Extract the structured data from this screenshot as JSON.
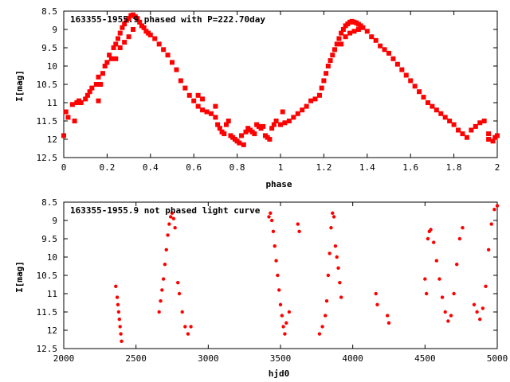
{
  "chart_data": [
    {
      "type": "scatter",
      "title": "163355-1955.9 phased with P=222.70day",
      "xlabel": "phase",
      "ylabel": "I[mag]",
      "xlim": [
        0,
        2
      ],
      "ylim": [
        8.5,
        12.5
      ],
      "y_inverted": true,
      "grid": false,
      "xticks": [
        0,
        0.2,
        0.4,
        0.6,
        0.8,
        1,
        1.2,
        1.4,
        1.6,
        1.8,
        2
      ],
      "xtick_labels": [
        "0",
        "0.2",
        "0.4",
        "0.6",
        "0.8",
        "1",
        "1.2",
        "1.4",
        "1.6",
        "1.8",
        "2"
      ],
      "yticks": [
        8.5,
        9,
        9.5,
        10,
        10.5,
        11,
        11.5,
        12,
        12.5
      ],
      "ytick_labels": [
        "8.5",
        "9",
        "9.5",
        "10",
        "10.5",
        "11",
        "11.5",
        "12",
        "12.5"
      ],
      "marker_color": "#ff0000",
      "series": [
        {
          "points": [
            [
              0.0,
              11.9
            ],
            [
              0.01,
              11.25
            ],
            [
              0.02,
              11.4
            ],
            [
              0.04,
              11.05
            ],
            [
              0.05,
              11.5
            ],
            [
              0.06,
              11.0
            ],
            [
              0.07,
              10.95
            ],
            [
              0.08,
              11.0
            ],
            [
              0.1,
              10.9
            ],
            [
              0.11,
              10.8
            ],
            [
              0.12,
              10.7
            ],
            [
              0.13,
              10.6
            ],
            [
              0.15,
              10.5
            ],
            [
              0.16,
              10.3
            ],
            [
              0.17,
              10.5
            ],
            [
              0.18,
              10.2
            ],
            [
              0.16,
              10.95
            ],
            [
              0.19,
              10.0
            ],
            [
              0.2,
              9.9
            ],
            [
              0.21,
              9.7
            ],
            [
              0.22,
              9.8
            ],
            [
              0.23,
              9.5
            ],
            [
              0.24,
              9.4
            ],
            [
              0.25,
              9.25
            ],
            [
              0.26,
              9.1
            ],
            [
              0.27,
              8.95
            ],
            [
              0.28,
              8.85
            ],
            [
              0.29,
              8.75
            ],
            [
              0.3,
              8.7
            ],
            [
              0.31,
              8.62
            ],
            [
              0.32,
              8.6
            ],
            [
              0.33,
              8.65
            ],
            [
              0.34,
              8.7
            ],
            [
              0.35,
              8.8
            ],
            [
              0.36,
              8.9
            ],
            [
              0.37,
              8.95
            ],
            [
              0.38,
              9.05
            ],
            [
              0.39,
              9.1
            ],
            [
              0.4,
              9.15
            ],
            [
              0.42,
              9.25
            ],
            [
              0.44,
              9.4
            ],
            [
              0.46,
              9.55
            ],
            [
              0.48,
              9.7
            ],
            [
              0.5,
              9.9
            ],
            [
              0.52,
              10.1
            ],
            [
              0.54,
              10.4
            ],
            [
              0.56,
              10.6
            ],
            [
              0.58,
              10.8
            ],
            [
              0.6,
              10.95
            ],
            [
              0.62,
              11.1
            ],
            [
              0.64,
              11.2
            ],
            [
              0.66,
              11.25
            ],
            [
              0.68,
              11.3
            ],
            [
              0.7,
              11.4
            ],
            [
              0.71,
              11.6
            ],
            [
              0.72,
              11.7
            ],
            [
              0.73,
              11.8
            ],
            [
              0.74,
              11.85
            ],
            [
              0.75,
              11.6
            ],
            [
              0.76,
              11.5
            ],
            [
              0.77,
              11.9
            ],
            [
              0.78,
              11.95
            ],
            [
              0.79,
              12.0
            ],
            [
              0.8,
              12.05
            ],
            [
              0.81,
              12.1
            ],
            [
              0.82,
              11.9
            ],
            [
              0.83,
              12.15
            ],
            [
              0.84,
              11.8
            ],
            [
              0.85,
              11.7
            ],
            [
              0.86,
              11.75
            ],
            [
              0.87,
              11.8
            ],
            [
              0.88,
              11.85
            ],
            [
              0.89,
              11.6
            ],
            [
              0.9,
              11.65
            ],
            [
              0.91,
              11.7
            ],
            [
              0.92,
              11.65
            ],
            [
              0.93,
              11.9
            ],
            [
              0.94,
              11.95
            ],
            [
              0.95,
              12.0
            ],
            [
              0.96,
              11.7
            ],
            [
              0.97,
              11.6
            ],
            [
              0.98,
              11.5
            ],
            [
              1.0,
              11.6
            ],
            [
              1.01,
              11.25
            ],
            [
              1.02,
              11.55
            ],
            [
              1.04,
              11.5
            ],
            [
              1.06,
              11.4
            ],
            [
              1.08,
              11.3
            ],
            [
              1.1,
              11.2
            ],
            [
              1.12,
              11.1
            ],
            [
              1.14,
              10.95
            ],
            [
              1.16,
              10.9
            ],
            [
              1.18,
              10.8
            ],
            [
              1.19,
              10.6
            ],
            [
              1.2,
              10.4
            ],
            [
              1.21,
              10.2
            ],
            [
              1.22,
              10.0
            ],
            [
              1.23,
              9.85
            ],
            [
              1.24,
              9.7
            ],
            [
              1.25,
              9.55
            ],
            [
              1.26,
              9.4
            ],
            [
              1.27,
              9.25
            ],
            [
              1.28,
              9.1
            ],
            [
              1.29,
              9.0
            ],
            [
              1.3,
              8.9
            ],
            [
              1.31,
              8.85
            ],
            [
              1.32,
              8.8
            ],
            [
              1.33,
              8.78
            ],
            [
              1.34,
              8.8
            ],
            [
              1.35,
              8.82
            ],
            [
              1.36,
              8.86
            ],
            [
              1.37,
              8.9
            ],
            [
              1.38,
              8.95
            ],
            [
              1.4,
              9.05
            ],
            [
              1.42,
              9.2
            ],
            [
              1.44,
              9.3
            ],
            [
              1.46,
              9.45
            ],
            [
              1.48,
              9.55
            ],
            [
              1.5,
              9.65
            ],
            [
              1.52,
              9.8
            ],
            [
              1.54,
              9.95
            ],
            [
              1.56,
              10.1
            ],
            [
              1.58,
              10.25
            ],
            [
              1.6,
              10.4
            ],
            [
              1.62,
              10.55
            ],
            [
              1.64,
              10.7
            ],
            [
              1.66,
              10.85
            ],
            [
              1.68,
              11.0
            ],
            [
              1.7,
              11.1
            ],
            [
              1.72,
              11.2
            ],
            [
              1.74,
              11.3
            ],
            [
              1.76,
              11.4
            ],
            [
              1.78,
              11.5
            ],
            [
              1.8,
              11.6
            ],
            [
              1.82,
              11.75
            ],
            [
              1.84,
              11.85
            ],
            [
              1.86,
              11.95
            ],
            [
              1.88,
              11.75
            ],
            [
              1.9,
              11.65
            ],
            [
              1.92,
              11.55
            ],
            [
              1.94,
              11.5
            ],
            [
              1.96,
              11.85
            ],
            [
              1.98,
              12.05
            ],
            [
              2.0,
              11.9
            ],
            [
              1.28,
              9.4
            ],
            [
              1.3,
              9.2
            ],
            [
              1.32,
              9.1
            ],
            [
              1.34,
              9.05
            ],
            [
              1.36,
              9.0
            ],
            [
              0.24,
              9.8
            ],
            [
              0.26,
              9.5
            ],
            [
              0.28,
              9.35
            ],
            [
              0.3,
              9.2
            ],
            [
              0.32,
              9.0
            ],
            [
              0.62,
              10.8
            ],
            [
              0.64,
              10.9
            ],
            [
              0.7,
              11.1
            ],
            [
              1.96,
              12.0
            ],
            [
              1.99,
              11.95
            ]
          ]
        }
      ]
    },
    {
      "type": "scatter",
      "title": "163355-1955.9 not phased light curve",
      "xlabel": "hjd0",
      "ylabel": "I[mag]",
      "xlim": [
        2000,
        5000
      ],
      "ylim": [
        8.5,
        12.5
      ],
      "y_inverted": true,
      "grid": false,
      "xticks": [
        2000,
        2500,
        3000,
        3500,
        4000,
        4500,
        5000
      ],
      "xtick_labels": [
        "2000",
        "2500",
        "3000",
        "3500",
        "4000",
        "4500",
        "5000"
      ],
      "yticks": [
        8.5,
        9,
        9.5,
        10,
        10.5,
        11,
        11.5,
        12,
        12.5
      ],
      "ytick_labels": [
        "8.5",
        "9",
        "9.5",
        "10",
        "10.5",
        "11",
        "11.5",
        "12",
        "12.5"
      ],
      "marker_color": "#ff0000",
      "series": [
        {
          "points": [
            [
              2360,
              10.8
            ],
            [
              2370,
              11.1
            ],
            [
              2375,
              11.3
            ],
            [
              2380,
              11.5
            ],
            [
              2385,
              11.7
            ],
            [
              2390,
              11.9
            ],
            [
              2395,
              12.1
            ],
            [
              2400,
              12.3
            ],
            [
              2660,
              11.5
            ],
            [
              2670,
              11.2
            ],
            [
              2680,
              10.9
            ],
            [
              2690,
              10.6
            ],
            [
              2700,
              10.2
            ],
            [
              2710,
              9.8
            ],
            [
              2720,
              9.4
            ],
            [
              2730,
              9.1
            ],
            [
              2740,
              8.9
            ],
            [
              2750,
              8.8
            ],
            [
              2760,
              8.95
            ],
            [
              2770,
              9.2
            ],
            [
              2790,
              10.7
            ],
            [
              2800,
              11.0
            ],
            [
              2820,
              11.5
            ],
            [
              2840,
              11.9
            ],
            [
              2860,
              12.1
            ],
            [
              2880,
              11.9
            ],
            [
              3420,
              8.9
            ],
            [
              3430,
              8.8
            ],
            [
              3440,
              9.0
            ],
            [
              3450,
              9.3
            ],
            [
              3460,
              9.7
            ],
            [
              3470,
              10.1
            ],
            [
              3480,
              10.5
            ],
            [
              3490,
              10.9
            ],
            [
              3500,
              11.3
            ],
            [
              3510,
              11.6
            ],
            [
              3520,
              11.9
            ],
            [
              3530,
              12.1
            ],
            [
              3540,
              11.8
            ],
            [
              3560,
              11.5
            ],
            [
              3620,
              9.1
            ],
            [
              3630,
              9.3
            ],
            [
              3770,
              12.1
            ],
            [
              3790,
              11.9
            ],
            [
              3810,
              11.6
            ],
            [
              3820,
              11.2
            ],
            [
              3830,
              10.5
            ],
            [
              3840,
              9.9
            ],
            [
              3850,
              9.2
            ],
            [
              3860,
              8.8
            ],
            [
              3870,
              8.9
            ],
            [
              3880,
              9.7
            ],
            [
              3890,
              10.0
            ],
            [
              3900,
              10.3
            ],
            [
              3910,
              10.7
            ],
            [
              3920,
              11.1
            ],
            [
              4160,
              11.0
            ],
            [
              4170,
              11.3
            ],
            [
              4240,
              11.6
            ],
            [
              4250,
              11.8
            ],
            [
              4500,
              10.6
            ],
            [
              4510,
              11.0
            ],
            [
              4520,
              9.5
            ],
            [
              4530,
              9.3
            ],
            [
              4540,
              9.25
            ],
            [
              4560,
              9.6
            ],
            [
              4580,
              10.1
            ],
            [
              4600,
              10.6
            ],
            [
              4620,
              11.1
            ],
            [
              4640,
              11.5
            ],
            [
              4660,
              11.75
            ],
            [
              4680,
              11.6
            ],
            [
              4700,
              11.0
            ],
            [
              4720,
              10.2
            ],
            [
              4740,
              9.5
            ],
            [
              4760,
              9.2
            ],
            [
              4840,
              11.3
            ],
            [
              4860,
              11.5
            ],
            [
              4880,
              11.7
            ],
            [
              4900,
              11.4
            ],
            [
              4920,
              10.8
            ],
            [
              4940,
              9.8
            ],
            [
              4960,
              9.1
            ],
            [
              4980,
              8.7
            ],
            [
              5000,
              8.6
            ]
          ]
        }
      ]
    }
  ]
}
